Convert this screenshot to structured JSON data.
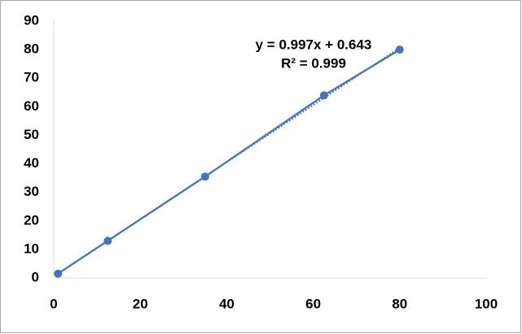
{
  "chart_data": {
    "type": "scatter",
    "series": [
      {
        "color": "#4472c4",
        "x": [
          1,
          12.5,
          35,
          62.5,
          80
        ],
        "values": [
          1.5,
          13,
          35.5,
          64,
          80
        ]
      }
    ],
    "trendline": "linear",
    "annotation": [
      "y = 0.997x + 0.643",
      "R² = 0.999"
    ],
    "xlim": [
      0,
      100
    ],
    "xticks": [
      0,
      20,
      40,
      60,
      80,
      100
    ],
    "ylim": [
      0,
      90
    ],
    "yticks": [
      0,
      10,
      20,
      30,
      40,
      50,
      60,
      70,
      80,
      90
    ],
    "grid": false
  }
}
